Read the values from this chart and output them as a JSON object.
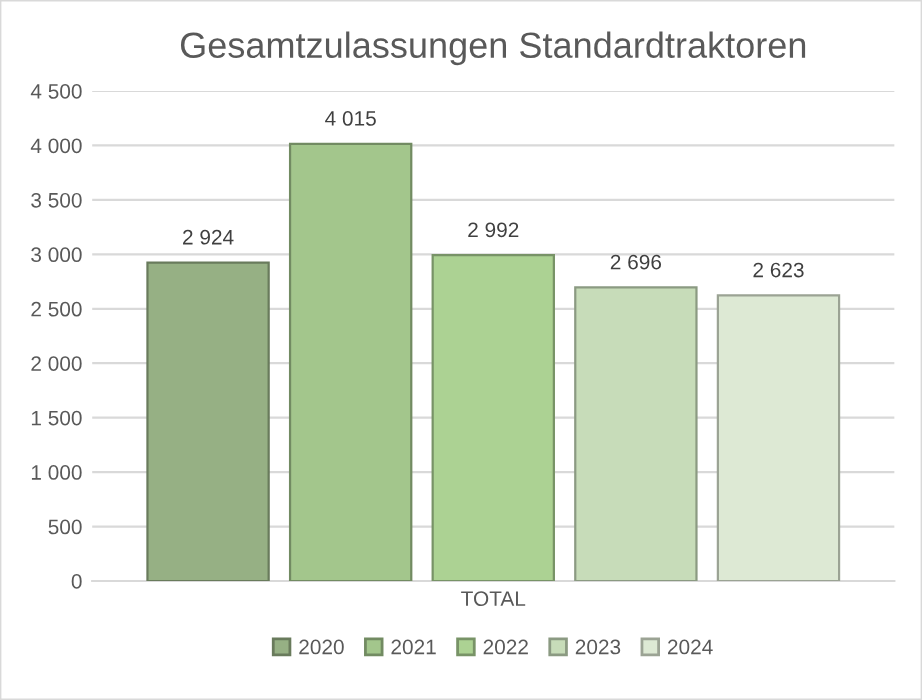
{
  "chart_data": {
    "type": "bar",
    "title": "Gesamtzulassungen Standardtraktoren",
    "categories": [
      "TOTAL"
    ],
    "series": [
      {
        "name": "2020",
        "color": "#96b084",
        "values": [
          2924
        ],
        "value_labels": [
          "2 924"
        ]
      },
      {
        "name": "2021",
        "color": "#a3c68c",
        "values": [
          4015
        ],
        "value_labels": [
          "4 015"
        ]
      },
      {
        "name": "2022",
        "color": "#acd293",
        "values": [
          2992
        ],
        "value_labels": [
          "2 992"
        ]
      },
      {
        "name": "2023",
        "color": "#c7dcb9",
        "values": [
          2696
        ],
        "value_labels": [
          "2 696"
        ]
      },
      {
        "name": "2024",
        "color": "#dde9d4",
        "values": [
          2623
        ],
        "value_labels": [
          "2 623"
        ]
      }
    ],
    "ylim": [
      0,
      4500
    ],
    "yticks": [
      0,
      {
        "value": 500,
        "label": "500"
      },
      {
        "value": 1000,
        "label": "1 000"
      },
      {
        "value": 1500,
        "label": "1 500"
      },
      {
        "value": 2000,
        "label": "2 000"
      },
      {
        "value": 2500,
        "label": "2 500"
      },
      {
        "value": 3000,
        "label": "3 000"
      },
      {
        "value": 3500,
        "label": "3 500"
      },
      {
        "value": 4000,
        "label": "4 000"
      },
      {
        "value": 4500,
        "label": "4 500"
      }
    ],
    "grid": "y",
    "legend": "bottom"
  }
}
